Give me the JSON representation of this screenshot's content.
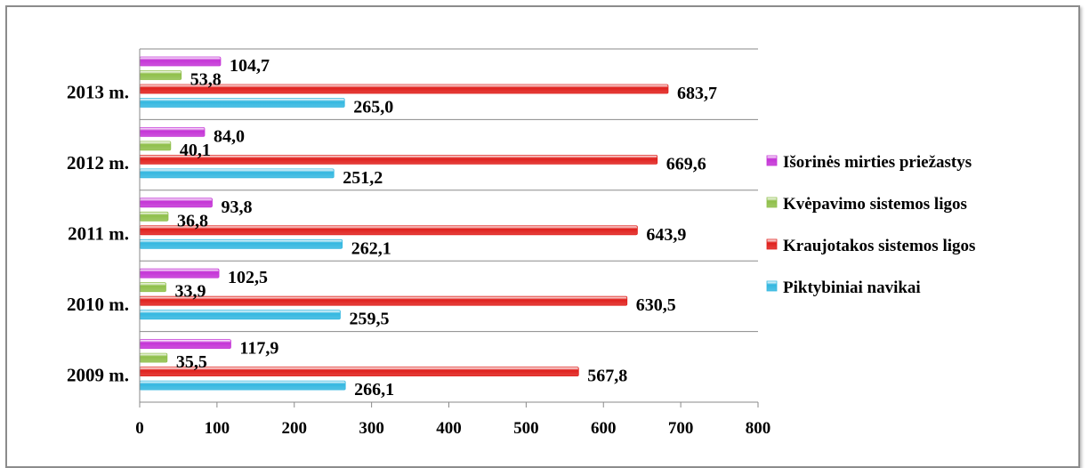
{
  "chart_data": {
    "type": "bar",
    "orientation": "horizontal",
    "categories": [
      "2009 m.",
      "2010 m.",
      "2011 m.",
      "2012 m.",
      "2013 m."
    ],
    "series": [
      {
        "name": "Piktybiniai navikai",
        "values": [
          266.1,
          259.5,
          262.1,
          251.2,
          265.0
        ],
        "labels": [
          "266,1",
          "259,5",
          "262,1",
          "251,2",
          "265,0"
        ],
        "color": "#33b7e0"
      },
      {
        "name": "Kraujotakos sistemos ligos",
        "values": [
          567.8,
          630.5,
          643.9,
          669.6,
          683.7
        ],
        "labels": [
          "567,8",
          "630,5",
          "643,9",
          "669,6",
          "683,7"
        ],
        "color": "#e0201c"
      },
      {
        "name": "Kvėpavimo sistemos ligos",
        "values": [
          35.5,
          33.9,
          36.8,
          40.1,
          53.8
        ],
        "labels": [
          "35,5",
          "33,9",
          "36,8",
          "40,1",
          "53,8"
        ],
        "color": "#8fbf4a"
      },
      {
        "name": "Išorinės mirties priežastys",
        "values": [
          117.9,
          102.5,
          93.8,
          84.0,
          104.7
        ],
        "labels": [
          "117,9",
          "102,5",
          "93,8",
          "84,0",
          "104,7"
        ],
        "color": "#c433d6"
      }
    ],
    "xlim": [
      0,
      800
    ],
    "xticks": [
      "0",
      "100",
      "200",
      "300",
      "400",
      "500",
      "600",
      "700",
      "800"
    ],
    "legend_position": "right",
    "legend_order": [
      "Išorinės mirties priežastys",
      "Kvėpavimo sistemos ligos",
      "Kraujotakos sistemos ligos",
      "Piktybiniai navikai"
    ],
    "grid": "horizontal category separators",
    "title": "",
    "xlabel": "",
    "ylabel": ""
  }
}
